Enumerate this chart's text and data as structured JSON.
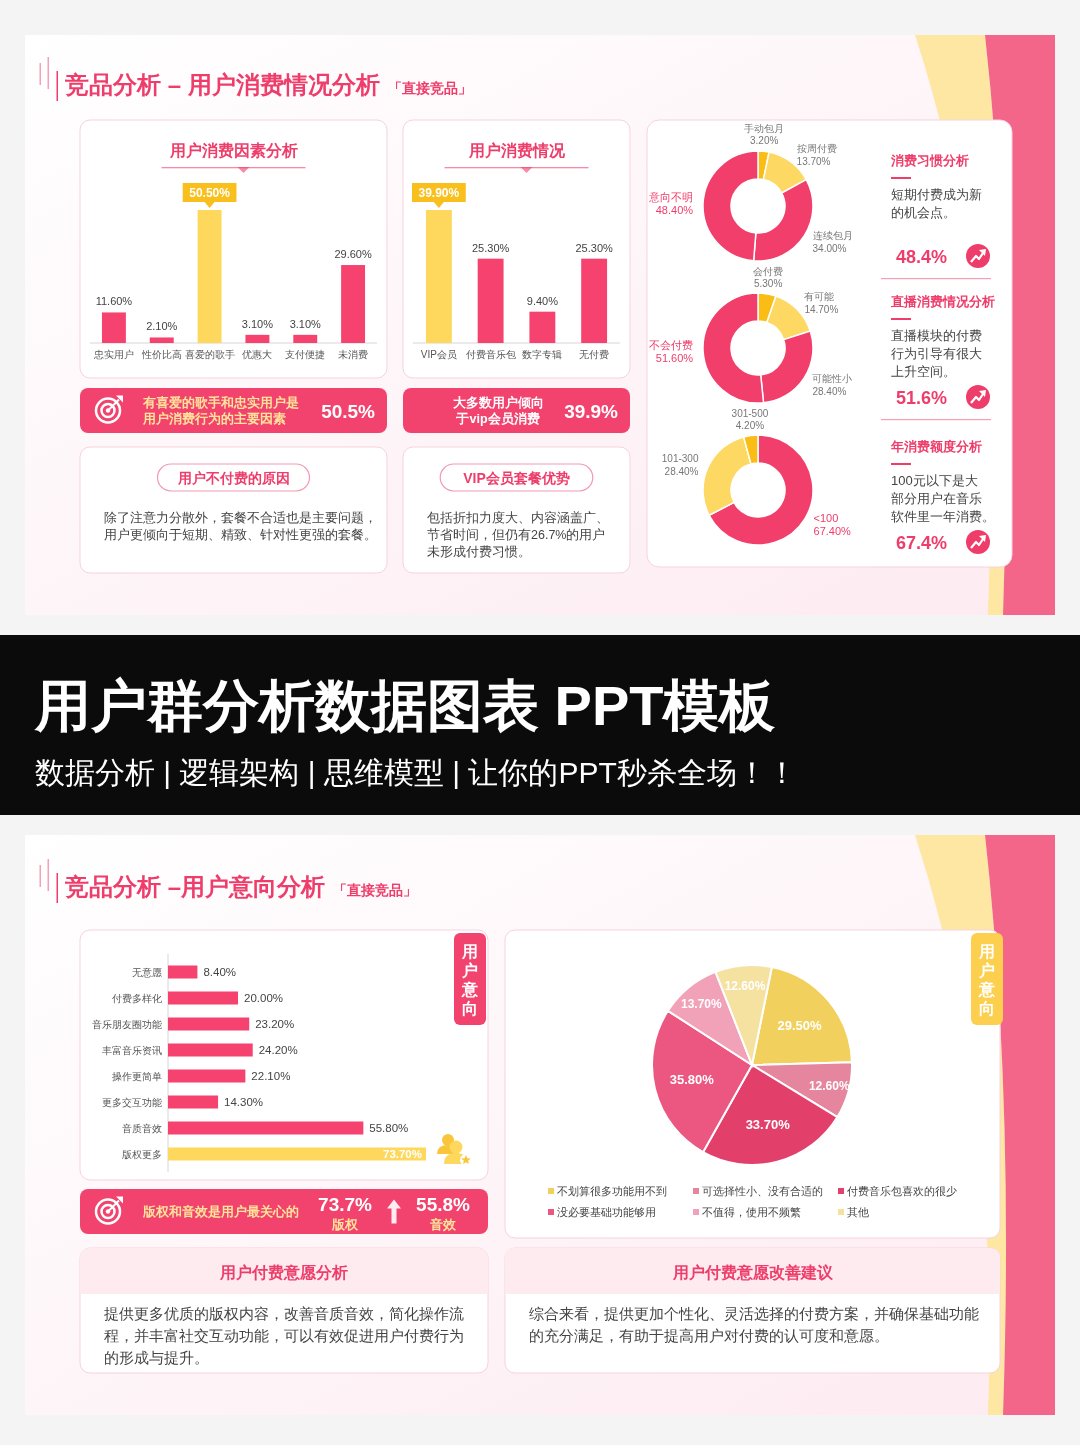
{
  "chart_data": [
    {
      "type": "other",
      "title": "竞品分析 – 用户消费情况分析",
      "subtitle": "「直接竞品」"
    },
    {
      "type": "bar",
      "title": "用户消费因素分析",
      "categories": [
        "忠实用户",
        "性价比高",
        "喜爱的歌手",
        "优惠大",
        "支付便捷",
        "未消费"
      ],
      "values": [
        11.6,
        2.1,
        50.5,
        3.1,
        3.1,
        29.6
      ],
      "colors": [
        "#f5426f",
        "#f5426f",
        "#fdd85d",
        "#f5426f",
        "#f5426f",
        "#f5426f"
      ],
      "value_labels": [
        "11.60%",
        "2.10%",
        "50.50%",
        "3.10%",
        "3.10%",
        "29.60%"
      ],
      "annotations": [
        "有喜爱的歌手和忠实用户是用户消费行为的主要因素",
        "50.5%"
      ]
    },
    {
      "type": "bar",
      "title": "用户消费情况",
      "categories": [
        "VIP会员",
        "付费音乐包",
        "数字专辑",
        "无付费"
      ],
      "values": [
        39.9,
        25.3,
        9.4,
        25.3
      ],
      "colors": [
        "#fdd85d",
        "#f5426f",
        "#f5426f",
        "#f5426f"
      ],
      "value_labels": [
        "39.90%",
        "25.30%",
        "9.40%",
        "25.30%"
      ],
      "annotations": [
        "大多数用户倾向于vip会员消费",
        "39.9%"
      ]
    },
    {
      "type": "donut",
      "title": "消费习惯分析",
      "categories": [
        "手动包月",
        "按周付费",
        "连续包月",
        "意向不明"
      ],
      "values": [
        3.2,
        13.7,
        34.0,
        48.4
      ],
      "colors": [
        "#f9bd16",
        "#fdd862",
        "#f23e6b",
        "#f23e6b"
      ],
      "value_labels": [
        "3.20%",
        "13.70%",
        "34.00%",
        "48.40%"
      ],
      "annotations": [
        "短期付费成为新的机会点。",
        "48.4%"
      ]
    },
    {
      "type": "donut",
      "title": "直播消费情况分析",
      "categories": [
        "会付费",
        "有可能",
        "可能性小",
        "不会付费"
      ],
      "values": [
        5.3,
        14.7,
        28.4,
        51.6
      ],
      "colors": [
        "#f9bd16",
        "#fdd862",
        "#f23e6b",
        "#f23e6b"
      ],
      "value_labels": [
        "5.30%",
        "14.70%",
        "28.40%",
        "51.60%"
      ],
      "annotations": [
        "直播模块的付费行为引导有很大上升空间。",
        "51.6%"
      ]
    },
    {
      "type": "donut",
      "title": "年消费额度分析",
      "categories": [
        "<100",
        "101-300",
        "301-500"
      ],
      "values": [
        67.4,
        28.4,
        4.2
      ],
      "colors": [
        "#f23e6b",
        "#fdd862",
        "#f9bd16"
      ],
      "value_labels": [
        "67.40%",
        "28.40%",
        "4.20%"
      ],
      "annotations": [
        "100元以下是大部分用户在音乐软件里一年消费。",
        "67.4%"
      ]
    },
    {
      "type": "other",
      "title": "用户不付费的原因",
      "annotations": [
        "除了注意力分散外，套餐不合适也是主要问题，用户更倾向于短期、精致、针对性更强的套餐。"
      ]
    },
    {
      "type": "other",
      "title": "VIP会员套餐优势",
      "annotations": [
        "包括折扣力度大、内容涵盖广、节省时间，但仍有26.7%的用户未形成付费习惯。"
      ]
    },
    {
      "type": "other",
      "title": "用户群分析数据图表 PPT模板",
      "subtitle": "数据分析 | 逻辑架构 | 思维模型 | 让你的PPT秒杀全场！！"
    },
    {
      "type": "other",
      "title": "竞品分析 –用户意向分析",
      "subtitle": "「直接竞品」"
    },
    {
      "type": "bar",
      "orientation": "horizontal",
      "categories": [
        "无意愿",
        "付费多样化",
        "音乐朋友圈功能",
        "丰富音乐资讯",
        "操作更简单",
        "更多交互功能",
        "音质音效",
        "版权更多"
      ],
      "values": [
        8.4,
        20.0,
        23.2,
        24.2,
        22.1,
        14.3,
        55.8,
        73.7
      ],
      "colors": [
        "#f5426f",
        "#f5426f",
        "#f5426f",
        "#f5426f",
        "#f5426f",
        "#f5426f",
        "#f5426f",
        "#fdd85d"
      ],
      "value_labels": [
        "8.40%",
        "20.00%",
        "23.20%",
        "24.20%",
        "22.10%",
        "14.30%",
        "55.80%",
        "73.70%"
      ],
      "annotations": [
        "版权和音效是用户最关心的",
        "73.7%",
        "版权",
        "55.8%",
        "音效"
      ]
    },
    {
      "type": "other",
      "title": "用户意向"
    },
    {
      "type": "pie",
      "categories": [
        "不划算很多功能用不到",
        "可选择性小、没有合适的",
        "付费音乐包喜欢的很少",
        "没必要基础功能够用",
        "不值得，使用不频繁",
        "其他"
      ],
      "values": [
        29.5,
        12.6,
        33.7,
        35.8,
        13.7,
        12.6
      ],
      "colors": [
        "#f2d05e",
        "#e6869e",
        "#e2406b",
        "#eb5780",
        "#f2a2b8",
        "#f5e2a0"
      ],
      "value_labels": [
        "29.50%",
        "12.60%",
        "33.70%",
        "35.80%",
        "13.70%",
        "12.60%"
      ],
      "legend": "bottom"
    },
    {
      "type": "other",
      "title": "用户意向"
    },
    {
      "type": "other",
      "title": "用户付费意愿分析",
      "annotations": [
        "提供更多优质的版权内容，改善音质音效，简化操作流程，并丰富社交互动功能，可以有效促进用户付费行为的形成与提升。"
      ]
    },
    {
      "type": "other",
      "title": "用户付费意愿改善建议",
      "annotations": [
        "综合来看，提供更加个性化、灵活选择的付费方案，并确保基础功能的充分满足，有助于提高用户对付费的认可度和意愿。"
      ]
    }
  ]
}
